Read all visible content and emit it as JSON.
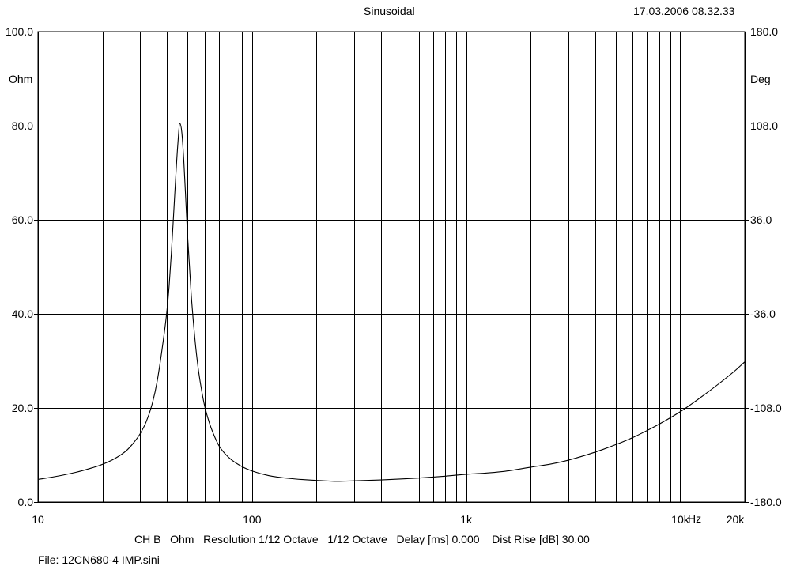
{
  "header": {
    "title": "Sinusoidal",
    "timestamp": "17.03.2006 08.32.33"
  },
  "footer": {
    "settings": "CH B   Ohm   Resolution 1/12 Octave   1/12 Octave   Delay [ms] 0.000    Dist Rise [dB] 30.00",
    "file": "File: 12CN680-4 IMP.sini"
  },
  "chart_data": {
    "type": "line",
    "x_scale": "log",
    "xlim": [
      10,
      20000
    ],
    "ylim": [
      0,
      100
    ],
    "y2lim": [
      -180,
      180
    ],
    "grid": true,
    "left_unit": "Ohm",
    "right_unit": "Deg",
    "x_unit": "Hz",
    "x_ticks": [
      {
        "value": 10,
        "label": "10"
      },
      {
        "value": 100,
        "label": "100"
      },
      {
        "value": 1000,
        "label": "1k"
      },
      {
        "value": 10000,
        "label": "10k"
      },
      {
        "value": 20000,
        "label": "20k"
      }
    ],
    "x_gridlines": [
      20,
      30,
      40,
      50,
      60,
      70,
      80,
      90,
      200,
      300,
      400,
      500,
      600,
      700,
      800,
      900,
      2000,
      3000,
      4000,
      5000,
      6000,
      7000,
      8000,
      9000
    ],
    "y_ticks": [
      {
        "value": 0,
        "label": "0.0"
      },
      {
        "value": 20,
        "label": "20.0"
      },
      {
        "value": 40,
        "label": "40.0"
      },
      {
        "value": 60,
        "label": "60.0"
      },
      {
        "value": 80,
        "label": "80.0"
      },
      {
        "value": 100,
        "label": "100.0"
      }
    ],
    "y2_ticks": [
      {
        "value": -180,
        "label": "-180.0"
      },
      {
        "value": -108,
        "label": "-108.0"
      },
      {
        "value": -36,
        "label": "-36.0"
      },
      {
        "value": 36,
        "label": "36.0"
      },
      {
        "value": 108,
        "label": "108.0"
      },
      {
        "value": 180,
        "label": "180.0"
      }
    ],
    "series": [
      {
        "color": "#000000",
        "x": [
          10,
          12,
          15,
          18,
          20,
          23,
          26,
          28,
          30,
          32,
          34,
          36,
          38,
          40,
          41,
          42,
          43,
          44,
          45,
          46,
          47,
          48,
          49,
          50,
          52,
          54,
          56,
          58,
          60,
          63,
          66,
          70,
          75,
          80,
          90,
          100,
          120,
          150,
          200,
          250,
          300,
          400,
          500,
          600,
          700,
          800,
          1000,
          1200,
          1500,
          2000,
          2500,
          3000,
          4000,
          5000,
          6000,
          7000,
          8000,
          10000,
          12000,
          15000,
          18000,
          20000
        ],
        "values": [
          4.8,
          5.4,
          6.3,
          7.3,
          8.0,
          9.3,
          11.0,
          12.6,
          14.5,
          17.0,
          20.5,
          25.5,
          32.5,
          40.5,
          46.0,
          53.0,
          61.0,
          69.0,
          76.0,
          80.5,
          78.5,
          72.5,
          64.5,
          56.5,
          44.0,
          35.0,
          28.5,
          24.0,
          20.5,
          17.0,
          14.5,
          12.0,
          10.2,
          9.0,
          7.5,
          6.6,
          5.6,
          5.0,
          4.6,
          4.4,
          4.5,
          4.7,
          4.9,
          5.1,
          5.3,
          5.5,
          5.9,
          6.1,
          6.5,
          7.4,
          8.1,
          8.9,
          10.6,
          12.2,
          13.7,
          15.2,
          16.6,
          19.2,
          21.7,
          25.0,
          27.9,
          29.8
        ]
      }
    ]
  }
}
